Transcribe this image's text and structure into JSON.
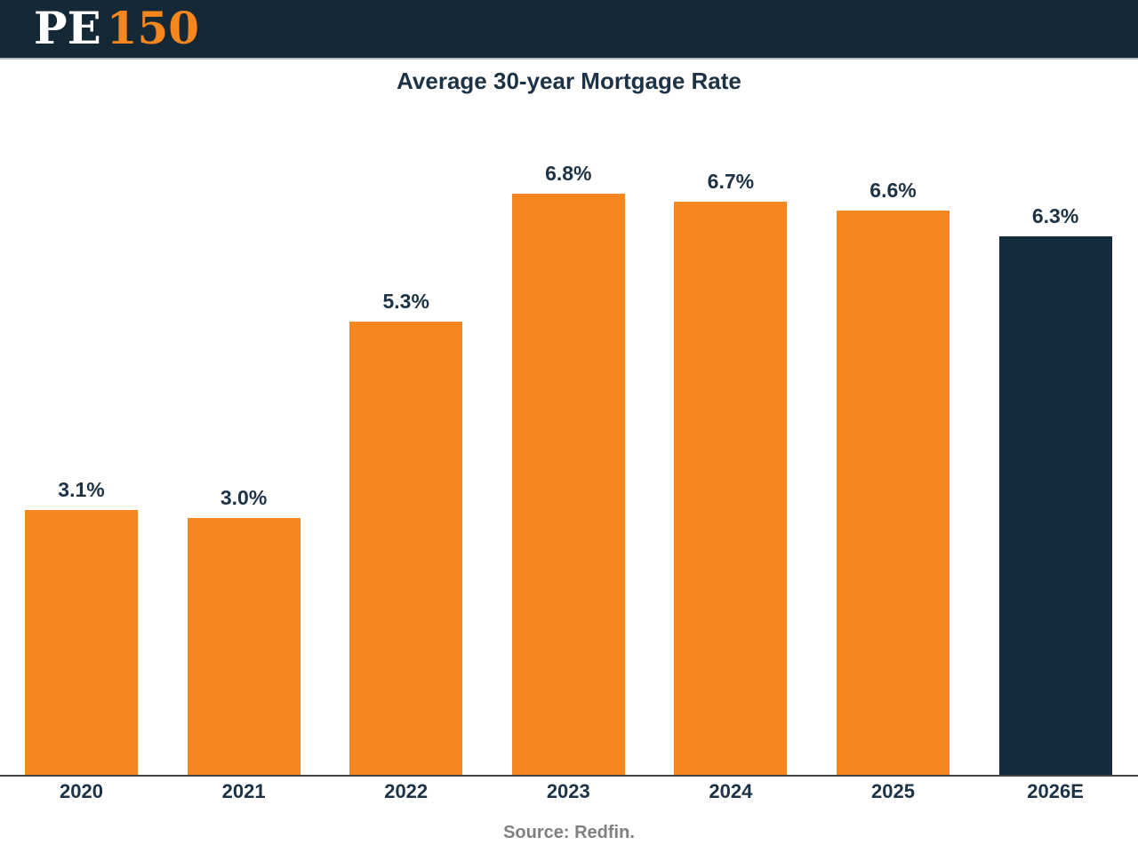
{
  "header": {
    "logo": {
      "pe": "PE",
      "num": "150"
    }
  },
  "chart_data": {
    "type": "bar",
    "title": "Average 30-year Mortgage Rate",
    "categories": [
      "2020",
      "2021",
      "2022",
      "2023",
      "2024",
      "2025",
      "2026E"
    ],
    "values": [
      3.1,
      3.0,
      5.3,
      6.8,
      6.7,
      6.6,
      6.3
    ],
    "value_labels": [
      "3.1%",
      "3.0%",
      "5.3%",
      "6.8%",
      "6.7%",
      "6.6%",
      "6.3%"
    ],
    "bar_colors": [
      "#F6871F",
      "#F6871F",
      "#F6871F",
      "#F6871F",
      "#F6871F",
      "#F6871F",
      "#132B3B"
    ],
    "highlighted_category": "2026E",
    "xlabel": "",
    "ylabel": "",
    "ylim": [
      0,
      7.2
    ],
    "grid": false,
    "legend": false,
    "source": "Source: Redfin."
  },
  "colors": {
    "header_bg": "#152836",
    "accent_orange": "#F6871F",
    "accent_navy": "#132B3B",
    "text_navy": "#1D3345",
    "source_gray": "#808080",
    "axis_line": "#3E4347"
  }
}
